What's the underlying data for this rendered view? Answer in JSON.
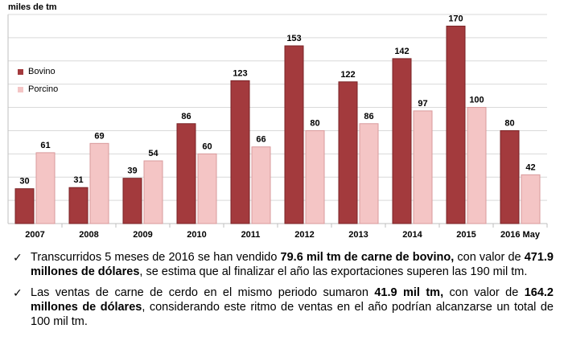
{
  "chart_data": {
    "type": "bar",
    "ylabel": "miles de tm",
    "categories": [
      "2007",
      "2008",
      "2009",
      "2010",
      "2011",
      "2012",
      "2013",
      "2014",
      "2015",
      "2016 May"
    ],
    "series": [
      {
        "name": "Bovino",
        "color": "#a33a3d",
        "values": [
          30,
          31,
          39,
          86,
          123,
          153,
          122,
          142,
          170,
          80
        ]
      },
      {
        "name": "Porcino",
        "color": "#f4c5c5",
        "values": [
          61,
          69,
          54,
          60,
          66,
          80,
          86,
          97,
          100,
          42
        ]
      }
    ],
    "ylim": [
      0,
      180
    ],
    "grid": true,
    "legend_position": "top-left"
  },
  "notes": [
    {
      "parts": [
        {
          "text": "Transcurridos 5 meses de 2016 se han vendido ",
          "bold": false
        },
        {
          "text": "79.6 mil tm de carne de bovino,",
          "bold": true
        },
        {
          "text": " con valor de ",
          "bold": false
        },
        {
          "text": "471.9 millones de dólares",
          "bold": true
        },
        {
          "text": ", se estima que al finalizar el año las exportaciones superen las 190 mil tm.",
          "bold": false
        }
      ]
    },
    {
      "parts": [
        {
          "text": "Las ventas de carne de cerdo en el mismo periodo sumaron ",
          "bold": false
        },
        {
          "text": "41.9 mil tm,",
          "bold": true
        },
        {
          "text": " con valor de ",
          "bold": false
        },
        {
          "text": "164.2 millones de dólares",
          "bold": true
        },
        {
          "text": ", considerando este ritmo de ventas en el año podrían alcanzarse un total de 100 mil tm.",
          "bold": false
        }
      ]
    }
  ]
}
